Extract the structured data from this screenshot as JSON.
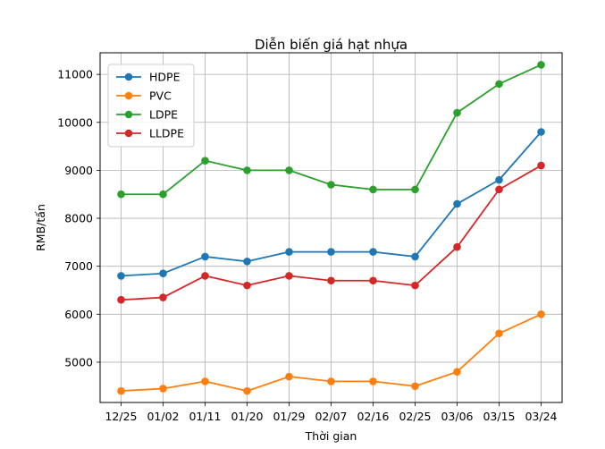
{
  "chart_data": {
    "type": "line",
    "title": "Diễn biến giá hạt nhựa",
    "xlabel": "Thời gian",
    "ylabel": "RMB/tấn",
    "categories": [
      "12/25",
      "01/02",
      "01/11",
      "01/20",
      "01/29",
      "02/07",
      "02/16",
      "02/25",
      "03/06",
      "03/15",
      "03/24"
    ],
    "yticks": [
      5000,
      6000,
      7000,
      8000,
      9000,
      10000,
      11000
    ],
    "ylim": [
      4160,
      11450
    ],
    "grid": true,
    "legend_position": "upper-left",
    "series": [
      {
        "name": "HDPE",
        "color": "#1f77b4",
        "values": [
          6800,
          6850,
          7200,
          7100,
          7300,
          7300,
          7300,
          7200,
          8300,
          8800,
          9800
        ]
      },
      {
        "name": "PVC",
        "color": "#ff7f0e",
        "values": [
          4400,
          4450,
          4600,
          4400,
          4700,
          4600,
          4600,
          4500,
          4800,
          5600,
          6000
        ]
      },
      {
        "name": "LDPE",
        "color": "#2ca02c",
        "values": [
          8500,
          8500,
          9200,
          9000,
          9000,
          8700,
          8600,
          8600,
          10200,
          10800,
          11200
        ]
      },
      {
        "name": "LLDPE",
        "color": "#d62728",
        "values": [
          6300,
          6350,
          6800,
          6600,
          6800,
          6700,
          6700,
          6600,
          7400,
          8600,
          9100
        ]
      }
    ]
  }
}
